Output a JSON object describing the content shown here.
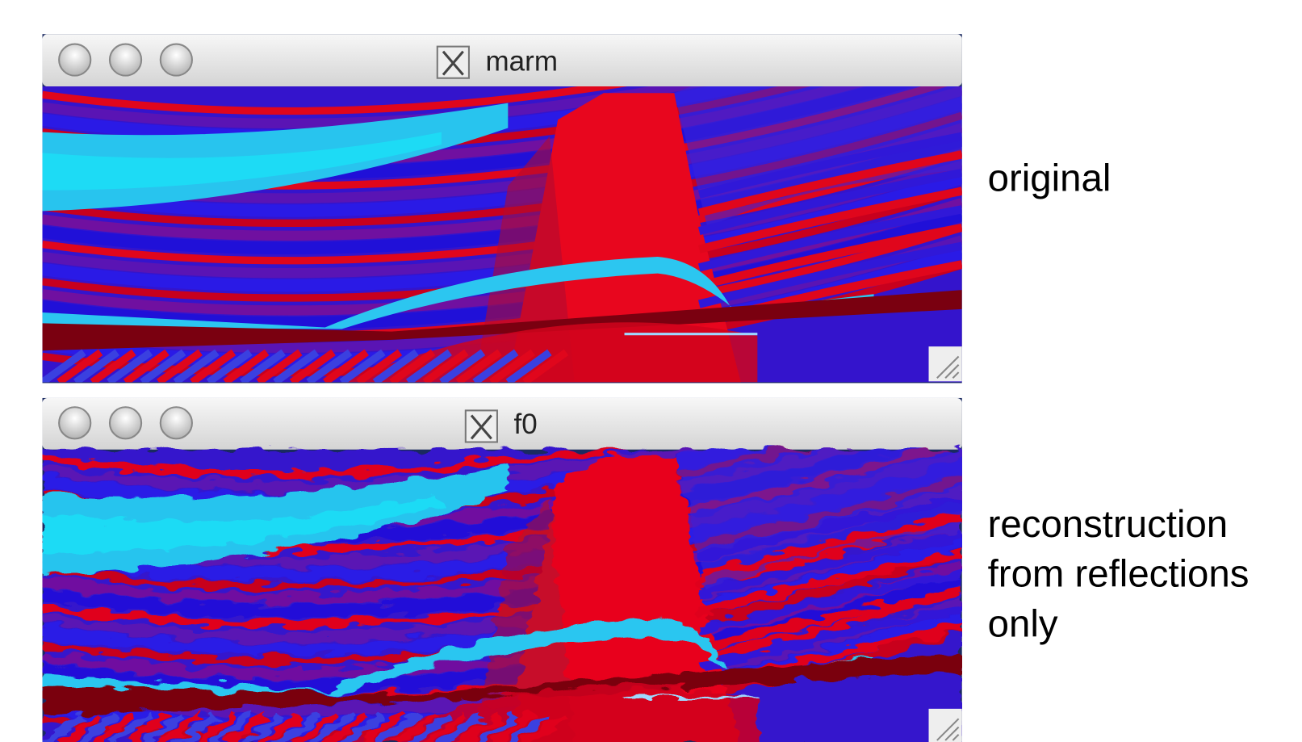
{
  "windows": [
    {
      "title": "marm",
      "caption": [
        "original"
      ]
    },
    {
      "title": "f0",
      "caption": [
        "reconstruction",
        "from reflections",
        "only"
      ]
    }
  ]
}
